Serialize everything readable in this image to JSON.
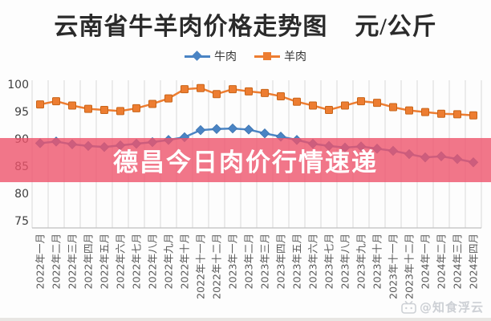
{
  "banner": {
    "text": "德昌今日肉价行情速递",
    "background_hex": "#ed546c",
    "overlay_alpha": 0.8,
    "text_color": "#ffffff"
  },
  "watermark": {
    "text": "@知食浮云"
  },
  "chart_data": {
    "type": "line",
    "title": "云南省牛羊肉价格走势图",
    "unit": "元/公斤",
    "legend_position": "top",
    "grid": "vertical",
    "ylim": [
      75,
      100
    ],
    "yticks": [
      100,
      95,
      90,
      85,
      80,
      75
    ],
    "colors": {
      "grid": "#d9d9d9",
      "axis": "#c0c0c0",
      "tick_text": "#595959"
    },
    "categories": [
      "2022年一月",
      "2022年二月",
      "2022年三月",
      "2022年四月",
      "2022年五月",
      "2022年六月",
      "2022年七月",
      "2022年八月",
      "2022年九月",
      "2022年十月",
      "2022年十一月",
      "2022年十二月",
      "2023年一月",
      "2023年二月",
      "2023年三月",
      "2023年四月",
      "2023年五月",
      "2023年六月",
      "2023年七月",
      "2023年八月",
      "2023年九月",
      "2023年十月",
      "2023年十一月",
      "2023年十二月",
      "2024年一月",
      "2024年二月",
      "2024年三月",
      "2024年四月"
    ],
    "series": [
      {
        "id": "beef",
        "name": "牛肉",
        "color": "#4a84c4",
        "border": "#3d74b0",
        "marker": "diamond",
        "values": [
          89.2,
          89.5,
          89.0,
          88.7,
          88.5,
          88.8,
          89.1,
          89.4,
          89.8,
          90.3,
          91.6,
          91.8,
          91.9,
          91.7,
          91.0,
          90.4,
          89.8,
          89.1,
          88.7,
          88.4,
          88.6,
          88.2,
          87.8,
          87.2,
          86.6,
          86.8,
          86.3,
          85.7
        ]
      },
      {
        "id": "mutton",
        "name": "羊肉",
        "color": "#ed7d31",
        "border": "#c8651a",
        "marker": "square",
        "values": [
          96.3,
          96.9,
          96.1,
          95.5,
          95.3,
          95.1,
          95.6,
          96.4,
          97.4,
          99.1,
          99.3,
          98.2,
          99.1,
          98.7,
          98.4,
          97.8,
          96.8,
          96.1,
          95.3,
          96.1,
          96.9,
          96.6,
          95.8,
          95.2,
          94.9,
          94.6,
          94.5,
          94.3
        ]
      }
    ]
  }
}
